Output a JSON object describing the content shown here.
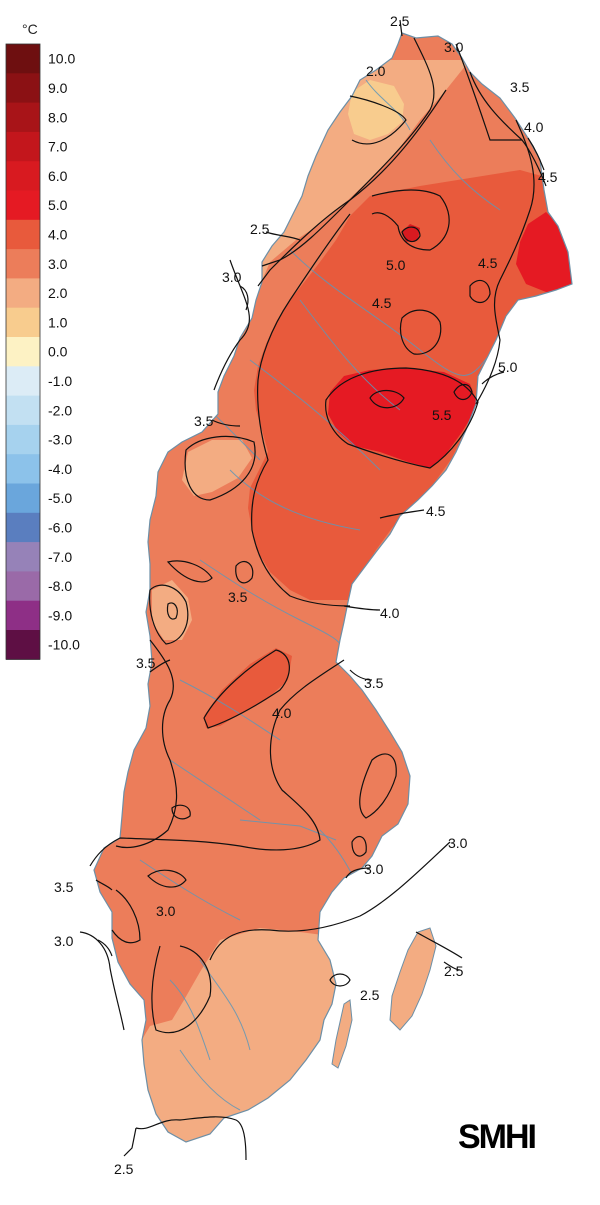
{
  "legend": {
    "unit": "°C",
    "entries": [
      {
        "label": "10.0",
        "color": "#6e0f10"
      },
      {
        "label": "9.0",
        "color": "#8b1114"
      },
      {
        "label": "8.0",
        "color": "#a81418"
      },
      {
        "label": "7.0",
        "color": "#c3161c"
      },
      {
        "label": "6.0",
        "color": "#d81a20"
      },
      {
        "label": "5.0",
        "color": "#e51a23"
      },
      {
        "label": "4.0",
        "color": "#e85a3c"
      },
      {
        "label": "3.0",
        "color": "#ec7d5a"
      },
      {
        "label": "2.0",
        "color": "#f3ac82"
      },
      {
        "label": "1.0",
        "color": "#f8cc8e"
      },
      {
        "label": "0.0",
        "color": "#fdf2c4"
      },
      {
        "label": "-1.0",
        "color": "#dcecf6"
      },
      {
        "label": "-2.0",
        "color": "#c2e0f2"
      },
      {
        "label": "-3.0",
        "color": "#a6d2ee"
      },
      {
        "label": "-4.0",
        "color": "#8cc2ea"
      },
      {
        "label": "-5.0",
        "color": "#6aa6dc"
      },
      {
        "label": "-6.0",
        "color": "#5a7ebf"
      },
      {
        "label": "-7.0",
        "color": "#9682b8"
      },
      {
        "label": "-8.0",
        "color": "#9a6aa8"
      },
      {
        "label": "-9.0",
        "color": "#8e2f86"
      },
      {
        "label": "-10.0",
        "color": "#5e0f44"
      }
    ]
  },
  "map": {
    "contour_labels": [
      "2.5",
      "3.0",
      "2.0",
      "3.5",
      "4.0",
      "4.5",
      "2.5",
      "5.0",
      "4.5",
      "3.0",
      "4.5",
      "5.0",
      "5.5",
      "3.5",
      "4.5",
      "4.0",
      "3.5",
      "3.5",
      "3.5",
      "4.0",
      "3.0",
      "3.0",
      "3.5",
      "3.0",
      "3.0",
      "2.5",
      "2.5",
      "2.5"
    ],
    "colors": {
      "land_base": "#ec7d5a",
      "band_2": "#f3ac82",
      "band_1": "#f8cc8e",
      "band_4": "#e85a3c",
      "band_5": "#e51a23",
      "band_6": "#d81a20",
      "contour_line": "#111111",
      "rivers": "#5f97b8",
      "coast": "#6d8fa6"
    }
  },
  "brand": {
    "logo": "SMHI"
  }
}
